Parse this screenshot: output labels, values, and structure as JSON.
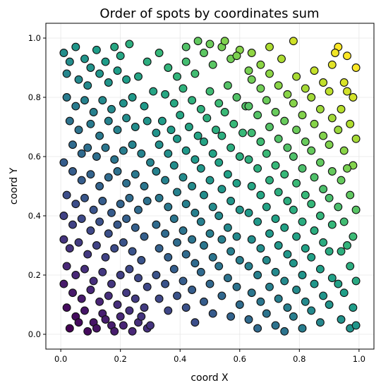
{
  "chart_data": {
    "type": "scatter",
    "title": "Order of spots by coordinates sum",
    "xlabel": "coord X",
    "ylabel": "coord Y",
    "xlim": [
      -0.05,
      1.05
    ],
    "ylim": [
      -0.05,
      1.05
    ],
    "xticks": [
      "0.0",
      "0.2",
      "0.4",
      "0.6",
      "0.8",
      "1.0"
    ],
    "yticks": [
      "0.0",
      "0.2",
      "0.4",
      "0.6",
      "0.8",
      "1.0"
    ],
    "grid": true,
    "legend": "none",
    "colormap": "viridis",
    "color_encoding": "x + y",
    "marker_edge_color": "#111111",
    "points": [
      [
        0.01,
        0.95
      ],
      [
        0.03,
        0.92
      ],
      [
        0.05,
        0.97
      ],
      [
        0.08,
        0.93
      ],
      [
        0.1,
        0.9
      ],
      [
        0.12,
        0.96
      ],
      [
        0.15,
        0.92
      ],
      [
        0.18,
        0.97
      ],
      [
        0.2,
        0.94
      ],
      [
        0.23,
        0.98
      ],
      [
        0.02,
        0.88
      ],
      [
        0.06,
        0.86
      ],
      [
        0.09,
        0.84
      ],
      [
        0.13,
        0.88
      ],
      [
        0.16,
        0.85
      ],
      [
        0.19,
        0.89
      ],
      [
        0.22,
        0.86
      ],
      [
        0.26,
        0.87
      ],
      [
        0.29,
        0.92
      ],
      [
        0.33,
        0.95
      ],
      [
        0.02,
        0.8
      ],
      [
        0.05,
        0.77
      ],
      [
        0.08,
        0.79
      ],
      [
        0.11,
        0.75
      ],
      [
        0.14,
        0.79
      ],
      [
        0.17,
        0.76
      ],
      [
        0.21,
        0.78
      ],
      [
        0.24,
        0.8
      ],
      [
        0.28,
        0.77
      ],
      [
        0.31,
        0.82
      ],
      [
        0.03,
        0.72
      ],
      [
        0.06,
        0.69
      ],
      [
        0.1,
        0.71
      ],
      [
        0.13,
        0.67
      ],
      [
        0.16,
        0.72
      ],
      [
        0.19,
        0.69
      ],
      [
        0.22,
        0.73
      ],
      [
        0.25,
        0.7
      ],
      [
        0.29,
        0.72
      ],
      [
        0.32,
        0.68
      ],
      [
        0.04,
        0.64
      ],
      [
        0.07,
        0.61
      ],
      [
        0.09,
        0.63
      ],
      [
        0.12,
        0.6
      ],
      [
        0.15,
        0.63
      ],
      [
        0.18,
        0.59
      ],
      [
        0.21,
        0.62
      ],
      [
        0.24,
        0.64
      ],
      [
        0.27,
        0.61
      ],
      [
        0.3,
        0.58
      ],
      [
        0.01,
        0.58
      ],
      [
        0.04,
        0.55
      ],
      [
        0.07,
        0.52
      ],
      [
        0.1,
        0.54
      ],
      [
        0.13,
        0.5
      ],
      [
        0.16,
        0.53
      ],
      [
        0.19,
        0.55
      ],
      [
        0.22,
        0.51
      ],
      [
        0.25,
        0.54
      ],
      [
        0.28,
        0.5
      ],
      [
        0.02,
        0.47
      ],
      [
        0.05,
        0.44
      ],
      [
        0.08,
        0.46
      ],
      [
        0.11,
        0.42
      ],
      [
        0.14,
        0.45
      ],
      [
        0.17,
        0.41
      ],
      [
        0.2,
        0.44
      ],
      [
        0.23,
        0.46
      ],
      [
        0.26,
        0.42
      ],
      [
        0.29,
        0.45
      ],
      [
        0.01,
        0.4
      ],
      [
        0.04,
        0.37
      ],
      [
        0.07,
        0.39
      ],
      [
        0.1,
        0.35
      ],
      [
        0.13,
        0.38
      ],
      [
        0.16,
        0.34
      ],
      [
        0.19,
        0.37
      ],
      [
        0.22,
        0.39
      ],
      [
        0.25,
        0.36
      ],
      [
        0.28,
        0.33
      ],
      [
        0.01,
        0.32
      ],
      [
        0.03,
        0.29
      ],
      [
        0.06,
        0.31
      ],
      [
        0.09,
        0.27
      ],
      [
        0.12,
        0.3
      ],
      [
        0.15,
        0.26
      ],
      [
        0.18,
        0.29
      ],
      [
        0.21,
        0.31
      ],
      [
        0.24,
        0.28
      ],
      [
        0.27,
        0.25
      ],
      [
        0.02,
        0.23
      ],
      [
        0.05,
        0.2
      ],
      [
        0.08,
        0.22
      ],
      [
        0.11,
        0.18
      ],
      [
        0.14,
        0.21
      ],
      [
        0.17,
        0.17
      ],
      [
        0.2,
        0.2
      ],
      [
        0.23,
        0.22
      ],
      [
        0.26,
        0.19
      ],
      [
        0.29,
        0.16
      ],
      [
        0.01,
        0.17
      ],
      [
        0.04,
        0.14
      ],
      [
        0.07,
        0.12
      ],
      [
        0.1,
        0.15
      ],
      [
        0.13,
        0.11
      ],
      [
        0.16,
        0.13
      ],
      [
        0.19,
        0.1
      ],
      [
        0.22,
        0.14
      ],
      [
        0.25,
        0.12
      ],
      [
        0.28,
        0.09
      ],
      [
        0.02,
        0.09
      ],
      [
        0.05,
        0.06
      ],
      [
        0.08,
        0.08
      ],
      [
        0.11,
        0.04
      ],
      [
        0.14,
        0.07
      ],
      [
        0.17,
        0.03
      ],
      [
        0.2,
        0.06
      ],
      [
        0.23,
        0.08
      ],
      [
        0.26,
        0.04
      ],
      [
        0.29,
        0.02
      ],
      [
        0.03,
        0.02
      ],
      [
        0.06,
        0.04
      ],
      [
        0.09,
        0.01
      ],
      [
        0.12,
        0.02
      ],
      [
        0.15,
        0.05
      ],
      [
        0.18,
        0.01
      ],
      [
        0.21,
        0.03
      ],
      [
        0.24,
        0.01
      ],
      [
        0.27,
        0.06
      ],
      [
        0.3,
        0.03
      ],
      [
        0.33,
        0.12
      ],
      [
        0.36,
        0.08
      ],
      [
        0.39,
        0.13
      ],
      [
        0.42,
        0.09
      ],
      [
        0.45,
        0.04
      ],
      [
        0.48,
        0.11
      ],
      [
        0.51,
        0.07
      ],
      [
        0.54,
        0.13
      ],
      [
        0.57,
        0.06
      ],
      [
        0.6,
        0.1
      ],
      [
        0.32,
        0.2
      ],
      [
        0.35,
        0.17
      ],
      [
        0.38,
        0.22
      ],
      [
        0.41,
        0.18
      ],
      [
        0.44,
        0.15
      ],
      [
        0.47,
        0.21
      ],
      [
        0.5,
        0.17
      ],
      [
        0.53,
        0.23
      ],
      [
        0.56,
        0.19
      ],
      [
        0.59,
        0.16
      ],
      [
        0.33,
        0.29
      ],
      [
        0.36,
        0.26
      ],
      [
        0.39,
        0.31
      ],
      [
        0.42,
        0.27
      ],
      [
        0.45,
        0.24
      ],
      [
        0.48,
        0.3
      ],
      [
        0.51,
        0.26
      ],
      [
        0.54,
        0.32
      ],
      [
        0.57,
        0.28
      ],
      [
        0.6,
        0.25
      ],
      [
        0.32,
        0.37
      ],
      [
        0.35,
        0.34
      ],
      [
        0.38,
        0.39
      ],
      [
        0.41,
        0.35
      ],
      [
        0.44,
        0.32
      ],
      [
        0.47,
        0.38
      ],
      [
        0.5,
        0.34
      ],
      [
        0.53,
        0.4
      ],
      [
        0.56,
        0.36
      ],
      [
        0.59,
        0.33
      ],
      [
        0.33,
        0.46
      ],
      [
        0.36,
        0.43
      ],
      [
        0.39,
        0.48
      ],
      [
        0.42,
        0.44
      ],
      [
        0.45,
        0.41
      ],
      [
        0.48,
        0.47
      ],
      [
        0.51,
        0.43
      ],
      [
        0.54,
        0.49
      ],
      [
        0.57,
        0.45
      ],
      [
        0.6,
        0.42
      ],
      [
        0.32,
        0.55
      ],
      [
        0.35,
        0.52
      ],
      [
        0.38,
        0.57
      ],
      [
        0.41,
        0.53
      ],
      [
        0.44,
        0.5
      ],
      [
        0.47,
        0.56
      ],
      [
        0.5,
        0.52
      ],
      [
        0.53,
        0.58
      ],
      [
        0.56,
        0.54
      ],
      [
        0.59,
        0.51
      ],
      [
        0.33,
        0.64
      ],
      [
        0.36,
        0.61
      ],
      [
        0.39,
        0.66
      ],
      [
        0.42,
        0.62
      ],
      [
        0.45,
        0.59
      ],
      [
        0.48,
        0.65
      ],
      [
        0.51,
        0.61
      ],
      [
        0.54,
        0.67
      ],
      [
        0.57,
        0.63
      ],
      [
        0.6,
        0.6
      ],
      [
        0.34,
        0.72
      ],
      [
        0.37,
        0.69
      ],
      [
        0.4,
        0.74
      ],
      [
        0.43,
        0.7
      ],
      [
        0.46,
        0.67
      ],
      [
        0.49,
        0.73
      ],
      [
        0.52,
        0.69
      ],
      [
        0.55,
        0.75
      ],
      [
        0.58,
        0.71
      ],
      [
        0.61,
        0.68
      ],
      [
        0.35,
        0.81
      ],
      [
        0.38,
        0.78
      ],
      [
        0.41,
        0.83
      ],
      [
        0.44,
        0.79
      ],
      [
        0.47,
        0.76
      ],
      [
        0.5,
        0.82
      ],
      [
        0.53,
        0.78
      ],
      [
        0.56,
        0.84
      ],
      [
        0.59,
        0.8
      ],
      [
        0.62,
        0.77
      ],
      [
        0.36,
        0.9
      ],
      [
        0.39,
        0.87
      ],
      [
        0.42,
        0.92
      ],
      [
        0.45,
        0.88
      ],
      [
        0.48,
        0.95
      ],
      [
        0.51,
        0.91
      ],
      [
        0.54,
        0.97
      ],
      [
        0.57,
        0.93
      ],
      [
        0.6,
        0.96
      ],
      [
        0.63,
        0.89
      ],
      [
        0.42,
        0.97
      ],
      [
        0.46,
        0.99
      ],
      [
        0.5,
        0.98
      ],
      [
        0.55,
        0.99
      ],
      [
        0.59,
        0.94
      ],
      [
        0.64,
        0.95
      ],
      [
        0.67,
        0.91
      ],
      [
        0.7,
        0.97
      ],
      [
        0.74,
        0.93
      ],
      [
        0.78,
        0.99
      ],
      [
        0.64,
        0.86
      ],
      [
        0.67,
        0.83
      ],
      [
        0.7,
        0.88
      ],
      [
        0.73,
        0.84
      ],
      [
        0.76,
        0.81
      ],
      [
        0.79,
        0.87
      ],
      [
        0.82,
        0.83
      ],
      [
        0.85,
        0.89
      ],
      [
        0.88,
        0.85
      ],
      [
        0.91,
        0.91
      ],
      [
        0.63,
        0.77
      ],
      [
        0.66,
        0.74
      ],
      [
        0.69,
        0.79
      ],
      [
        0.72,
        0.75
      ],
      [
        0.75,
        0.72
      ],
      [
        0.78,
        0.78
      ],
      [
        0.81,
        0.74
      ],
      [
        0.84,
        0.8
      ],
      [
        0.87,
        0.76
      ],
      [
        0.9,
        0.82
      ],
      [
        0.64,
        0.68
      ],
      [
        0.67,
        0.65
      ],
      [
        0.7,
        0.7
      ],
      [
        0.73,
        0.66
      ],
      [
        0.76,
        0.63
      ],
      [
        0.79,
        0.69
      ],
      [
        0.82,
        0.65
      ],
      [
        0.85,
        0.71
      ],
      [
        0.88,
        0.67
      ],
      [
        0.91,
        0.73
      ],
      [
        0.63,
        0.59
      ],
      [
        0.66,
        0.56
      ],
      [
        0.69,
        0.61
      ],
      [
        0.72,
        0.57
      ],
      [
        0.75,
        0.54
      ],
      [
        0.78,
        0.6
      ],
      [
        0.81,
        0.56
      ],
      [
        0.84,
        0.62
      ],
      [
        0.87,
        0.58
      ],
      [
        0.9,
        0.64
      ],
      [
        0.64,
        0.5
      ],
      [
        0.67,
        0.47
      ],
      [
        0.7,
        0.52
      ],
      [
        0.73,
        0.48
      ],
      [
        0.76,
        0.45
      ],
      [
        0.79,
        0.51
      ],
      [
        0.82,
        0.47
      ],
      [
        0.85,
        0.53
      ],
      [
        0.88,
        0.49
      ],
      [
        0.91,
        0.55
      ],
      [
        0.63,
        0.41
      ],
      [
        0.66,
        0.38
      ],
      [
        0.69,
        0.43
      ],
      [
        0.72,
        0.39
      ],
      [
        0.75,
        0.36
      ],
      [
        0.78,
        0.42
      ],
      [
        0.81,
        0.38
      ],
      [
        0.84,
        0.44
      ],
      [
        0.87,
        0.4
      ],
      [
        0.9,
        0.46
      ],
      [
        0.64,
        0.32
      ],
      [
        0.67,
        0.29
      ],
      [
        0.7,
        0.34
      ],
      [
        0.73,
        0.3
      ],
      [
        0.76,
        0.27
      ],
      [
        0.79,
        0.33
      ],
      [
        0.82,
        0.29
      ],
      [
        0.85,
        0.35
      ],
      [
        0.88,
        0.31
      ],
      [
        0.91,
        0.37
      ],
      [
        0.63,
        0.23
      ],
      [
        0.66,
        0.2
      ],
      [
        0.69,
        0.25
      ],
      [
        0.72,
        0.21
      ],
      [
        0.75,
        0.18
      ],
      [
        0.78,
        0.24
      ],
      [
        0.81,
        0.2
      ],
      [
        0.84,
        0.26
      ],
      [
        0.87,
        0.22
      ],
      [
        0.9,
        0.28
      ],
      [
        0.64,
        0.14
      ],
      [
        0.67,
        0.11
      ],
      [
        0.7,
        0.16
      ],
      [
        0.73,
        0.12
      ],
      [
        0.76,
        0.09
      ],
      [
        0.79,
        0.15
      ],
      [
        0.82,
        0.11
      ],
      [
        0.85,
        0.17
      ],
      [
        0.88,
        0.13
      ],
      [
        0.91,
        0.19
      ],
      [
        0.63,
        0.05
      ],
      [
        0.66,
        0.02
      ],
      [
        0.69,
        0.07
      ],
      [
        0.72,
        0.03
      ],
      [
        0.75,
        0.01
      ],
      [
        0.78,
        0.06
      ],
      [
        0.81,
        0.02
      ],
      [
        0.84,
        0.08
      ],
      [
        0.87,
        0.04
      ],
      [
        0.9,
        0.1
      ],
      [
        0.93,
        0.97
      ],
      [
        0.96,
        0.94
      ],
      [
        0.99,
        0.9
      ],
      [
        0.95,
        0.85
      ],
      [
        0.98,
        0.8
      ],
      [
        0.94,
        0.76
      ],
      [
        0.97,
        0.71
      ],
      [
        0.99,
        0.66
      ],
      [
        0.95,
        0.62
      ],
      [
        0.98,
        0.57
      ],
      [
        0.94,
        0.52
      ],
      [
        0.97,
        0.47
      ],
      [
        0.99,
        0.42
      ],
      [
        0.95,
        0.38
      ],
      [
        0.98,
        0.33
      ],
      [
        0.94,
        0.28
      ],
      [
        0.97,
        0.23
      ],
      [
        0.99,
        0.18
      ],
      [
        0.95,
        0.14
      ],
      [
        0.98,
        0.09
      ],
      [
        0.94,
        0.05
      ],
      [
        0.97,
        0.02
      ],
      [
        0.99,
        0.03
      ],
      [
        0.93,
        0.17
      ],
      [
        0.96,
        0.3
      ],
      [
        0.93,
        0.43
      ],
      [
        0.96,
        0.56
      ],
      [
        0.93,
        0.69
      ],
      [
        0.96,
        0.82
      ],
      [
        0.92,
        0.95
      ]
    ]
  }
}
